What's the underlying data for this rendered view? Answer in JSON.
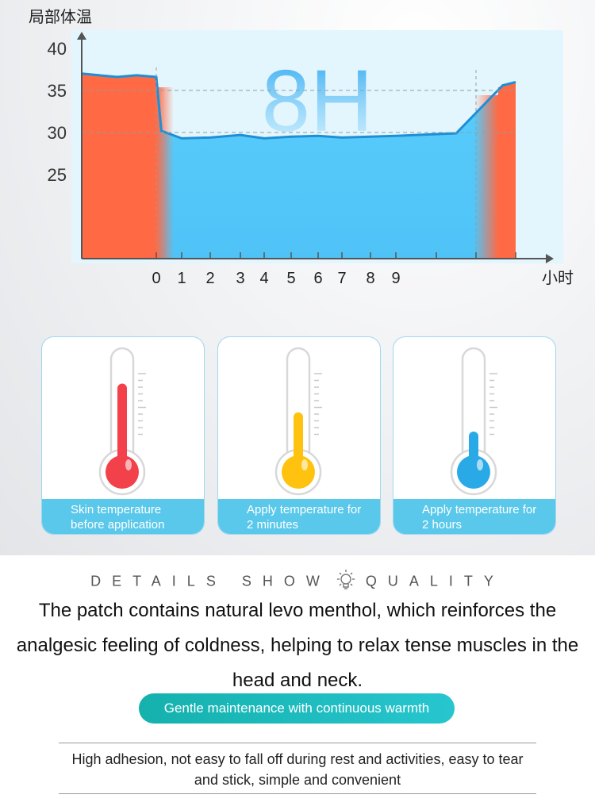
{
  "chart_data": {
    "type": "area",
    "title": "局部体温",
    "xlabel": "小时",
    "ylabel": "",
    "big_label": "8H",
    "yticks": [
      "40",
      "35",
      "30",
      "25"
    ],
    "xticks": [
      "0",
      "1",
      "2",
      "3",
      "4",
      "5",
      "6",
      "7",
      "8",
      "9"
    ],
    "ylim": [
      15,
      42
    ],
    "series": [
      {
        "phase": "before",
        "color": "#ff6a45",
        "x": [
          -1.9,
          -1.0,
          -0.5,
          0
        ],
        "y": [
          37,
          36.6,
          36.8,
          36.6
        ]
      },
      {
        "phase": "during",
        "color": "#5ad0ff",
        "x": [
          0,
          0.2,
          1,
          2,
          3,
          4,
          5,
          6,
          7,
          8,
          9,
          10,
          10.8
        ],
        "y": [
          36.6,
          30.2,
          29.3,
          29.4,
          29.7,
          29.3,
          29.5,
          29.6,
          29.4,
          29.5,
          29.6,
          29.9,
          33.5
        ]
      },
      {
        "phase": "after",
        "color": "#ff6a45",
        "x": [
          10.8,
          11.2,
          11.5
        ],
        "y": [
          33.5,
          35.6,
          36
        ]
      }
    ],
    "reference_lines": [
      35,
      30
    ],
    "grid": false
  },
  "cards": [
    {
      "caption": "Skin temperature before application",
      "level": 0.85,
      "color": "#f2414a"
    },
    {
      "caption": "Apply temperature for 2 minutes",
      "level": 0.52,
      "color": "#ffc20e"
    },
    {
      "caption": "Apply temperature for 2 hours",
      "level": 0.3,
      "color": "#29a9e6"
    }
  ],
  "details": {
    "left": "DETAILS SHOW",
    "right": "QUALITY",
    "icon": "lightbulb-icon"
  },
  "headline": "The patch contains natural levo menthol, which reinforces the analgesic feeling of coldness, helping to relax tense muscles in the head and neck.",
  "pill": "Gentle maintenance with continuous warmth",
  "description": "High adhesion, not easy to fall off during rest and activities, easy to tear and stick, simple and convenient"
}
